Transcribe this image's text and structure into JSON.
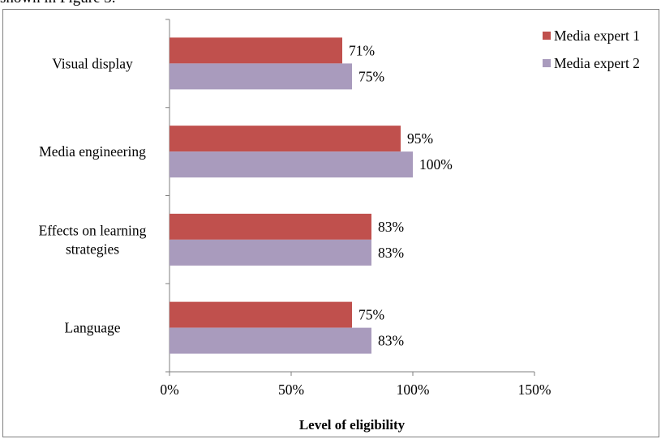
{
  "page": {
    "caption": "shown in Figure 3."
  },
  "chart_data": {
    "type": "bar",
    "orientation": "horizontal",
    "categories": [
      "Visual display",
      "Media engineering",
      "Effects on learning strategies",
      "Language"
    ],
    "category_lines": [
      [
        "Visual display"
      ],
      [
        "Media engineering"
      ],
      [
        "Effects on learning",
        "strategies"
      ],
      [
        "Language"
      ]
    ],
    "series": [
      {
        "name": "Media expert 1",
        "values": [
          71,
          95,
          83,
          75
        ],
        "labels": [
          "71%",
          "95%",
          "83%",
          "75%"
        ],
        "color": "#c0504d"
      },
      {
        "name": "Media expert 2",
        "values": [
          75,
          100,
          83,
          83
        ],
        "labels": [
          "75%",
          "100%",
          "83%",
          "83%"
        ],
        "color": "#a99bbd"
      }
    ],
    "xlabel": "Level of eligibility",
    "xlim": [
      0,
      150
    ],
    "xticks": [
      0,
      50,
      100,
      150
    ],
    "xtick_labels": [
      "0%",
      "50%",
      "100%",
      "150%"
    ],
    "grid": false,
    "legend_position": "top-right"
  }
}
